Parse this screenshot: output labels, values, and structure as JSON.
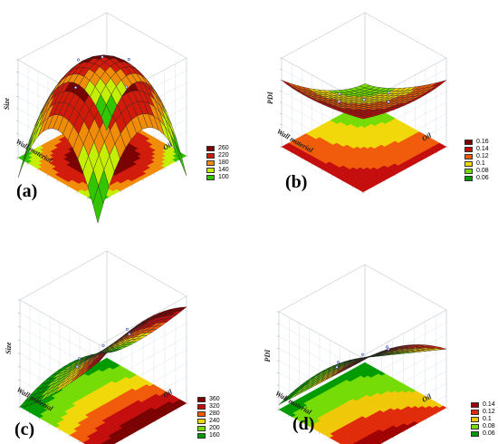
{
  "chart_data": [
    {
      "type": "surface3d",
      "panel": "(a)",
      "zlabel": "Size",
      "xlabel": "Wall material",
      "ylabel": "Oil",
      "legend": [
        {
          "label": "260",
          "color": "#7a0000"
        },
        {
          "label": "220",
          "color": "#d11a0a"
        },
        {
          "label": "180",
          "color": "#f08c08"
        },
        {
          "label": "140",
          "color": "#c4ef04"
        },
        {
          "label": "100",
          "color": "#33c500"
        }
      ],
      "surface": "concave-down dome peaking at center, lower at corners",
      "z_range": [
        100,
        280
      ]
    },
    {
      "type": "surface3d",
      "panel": "(b)",
      "zlabel": "PDI",
      "xlabel": "Wall material",
      "ylabel": "Oil",
      "legend": [
        {
          "label": "0.16",
          "color": "#7a0000"
        },
        {
          "label": "0.14",
          "color": "#c40c0c"
        },
        {
          "label": "0.12",
          "color": "#f05a08"
        },
        {
          "label": "0.1",
          "color": "#f0d808"
        },
        {
          "label": "0.08",
          "color": "#74dc04"
        },
        {
          "label": "0.06",
          "color": "#009a00"
        }
      ],
      "surface": "saddle, high at back-left and right, low at front",
      "z_range": [
        0.05,
        0.18
      ]
    },
    {
      "type": "surface3d",
      "panel": "(c)",
      "zlabel": "Size",
      "xlabel": "Wall material",
      "ylabel": "Oil",
      "legend": [
        {
          "label": "360",
          "color": "#7a0000"
        },
        {
          "label": "320",
          "color": "#c40c0c"
        },
        {
          "label": "280",
          "color": "#f05a08"
        },
        {
          "label": "240",
          "color": "#f0d808"
        },
        {
          "label": "200",
          "color": "#74dc04"
        },
        {
          "label": "160",
          "color": "#009a00"
        }
      ],
      "surface": "rising from left to right with ridge",
      "z_range": [
        140,
        380
      ]
    },
    {
      "type": "surface3d",
      "panel": "(d)",
      "zlabel": "PDI",
      "xlabel": "Wall material",
      "ylabel": "Oil",
      "legend": [
        {
          "label": "0.14",
          "color": "#a00000"
        },
        {
          "label": "0.12",
          "color": "#e02a08"
        },
        {
          "label": "0.1",
          "color": "#f0c808"
        },
        {
          "label": "0.08",
          "color": "#74dc04"
        },
        {
          "label": "0.06",
          "color": "#009a00"
        }
      ],
      "surface": "rising toward back-right corner",
      "z_range": [
        0.05,
        0.16
      ]
    }
  ]
}
